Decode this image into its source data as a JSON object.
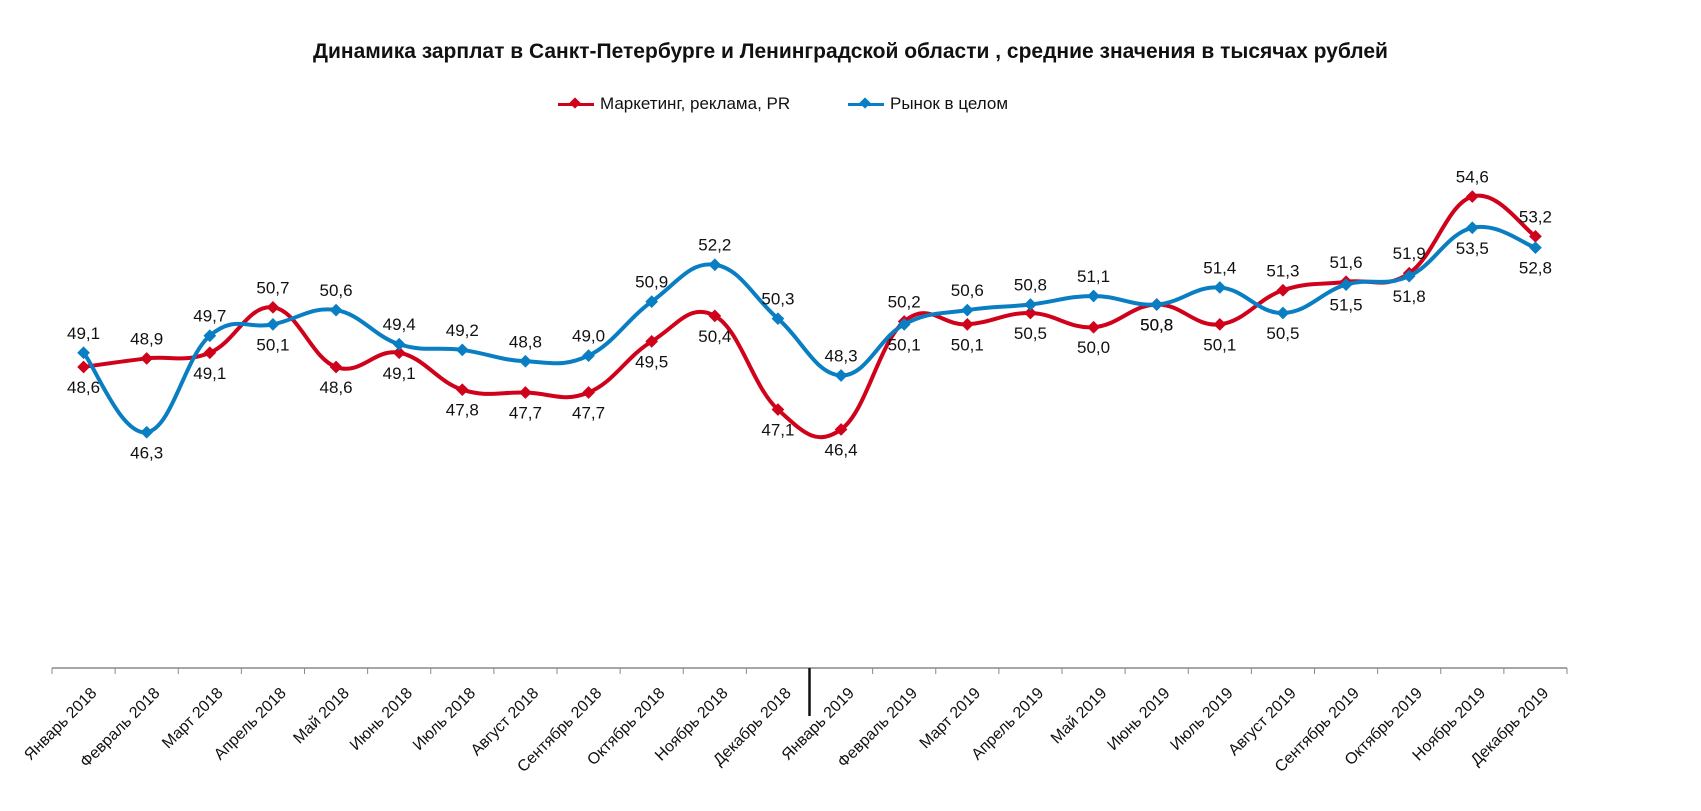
{
  "chart_data": {
    "type": "line",
    "title": "Динамика зарплат в Санкт-Петербурге и Ленинградской области , средние значения в тысячах рублей",
    "xlabel": "",
    "ylabel": "",
    "ylim": [
      38,
      58
    ],
    "legend_position": "top-center",
    "categories": [
      "Январь 2018",
      "Февраль 2018",
      "Март 2018",
      "Апрель 2018",
      "Май 2018",
      "Июнь 2018",
      "Июль 2018",
      "Август 2018",
      "Сентябрь 2018",
      "Октябрь 2018",
      "Ноябрь 2018",
      "Декабрь 2018",
      "Январь 2019",
      "Февраль 2019",
      "Март 2019",
      "Апрель 2019",
      "Май 2019",
      "Июнь 2019",
      "Июль 2019",
      "Август 2019",
      "Сентябрь 2019",
      "Октябрь 2019",
      "Ноябрь 2019",
      "Декабрь 2019"
    ],
    "series": [
      {
        "name": "Маркетинг, реклама, PR",
        "color": "#d0021b",
        "values": [
          48.6,
          48.9,
          49.1,
          50.7,
          48.6,
          49.1,
          47.8,
          47.7,
          47.7,
          49.5,
          50.4,
          47.1,
          46.4,
          50.2,
          50.1,
          50.5,
          50.0,
          50.8,
          50.1,
          51.3,
          51.6,
          51.9,
          54.6,
          53.2
        ],
        "labels": [
          "48,6",
          "48,9",
          "49,1",
          "50,7",
          "48,6",
          "49,1",
          "47,8",
          "47,7",
          "47,7",
          "49,5",
          "50,4",
          "47,1",
          "46,4",
          "50,2",
          "50,1",
          "50,5",
          "50,0",
          "50,8",
          "50,1",
          "51,3",
          "51,6",
          "51,9",
          "54,6",
          "53,2"
        ]
      },
      {
        "name": "Рынок в целом",
        "color": "#0a7ec2",
        "values": [
          49.1,
          46.3,
          49.7,
          50.1,
          50.6,
          49.4,
          49.2,
          48.8,
          49.0,
          50.9,
          52.2,
          50.3,
          48.3,
          50.1,
          50.6,
          50.8,
          51.1,
          50.8,
          51.4,
          50.5,
          51.5,
          51.8,
          53.5,
          52.8
        ],
        "labels": [
          "49,1",
          "46,3",
          "49,7",
          "50,1",
          "50,6",
          "49,4",
          "49,2",
          "48,8",
          "49,0",
          "50,9",
          "52,2",
          "50,3",
          "48,3",
          "50,1",
          "50,6",
          "50,8",
          "51,1",
          "50,8",
          "51,4",
          "50,5",
          "51,5",
          "51,8",
          "53,5",
          "52,8"
        ]
      }
    ]
  }
}
